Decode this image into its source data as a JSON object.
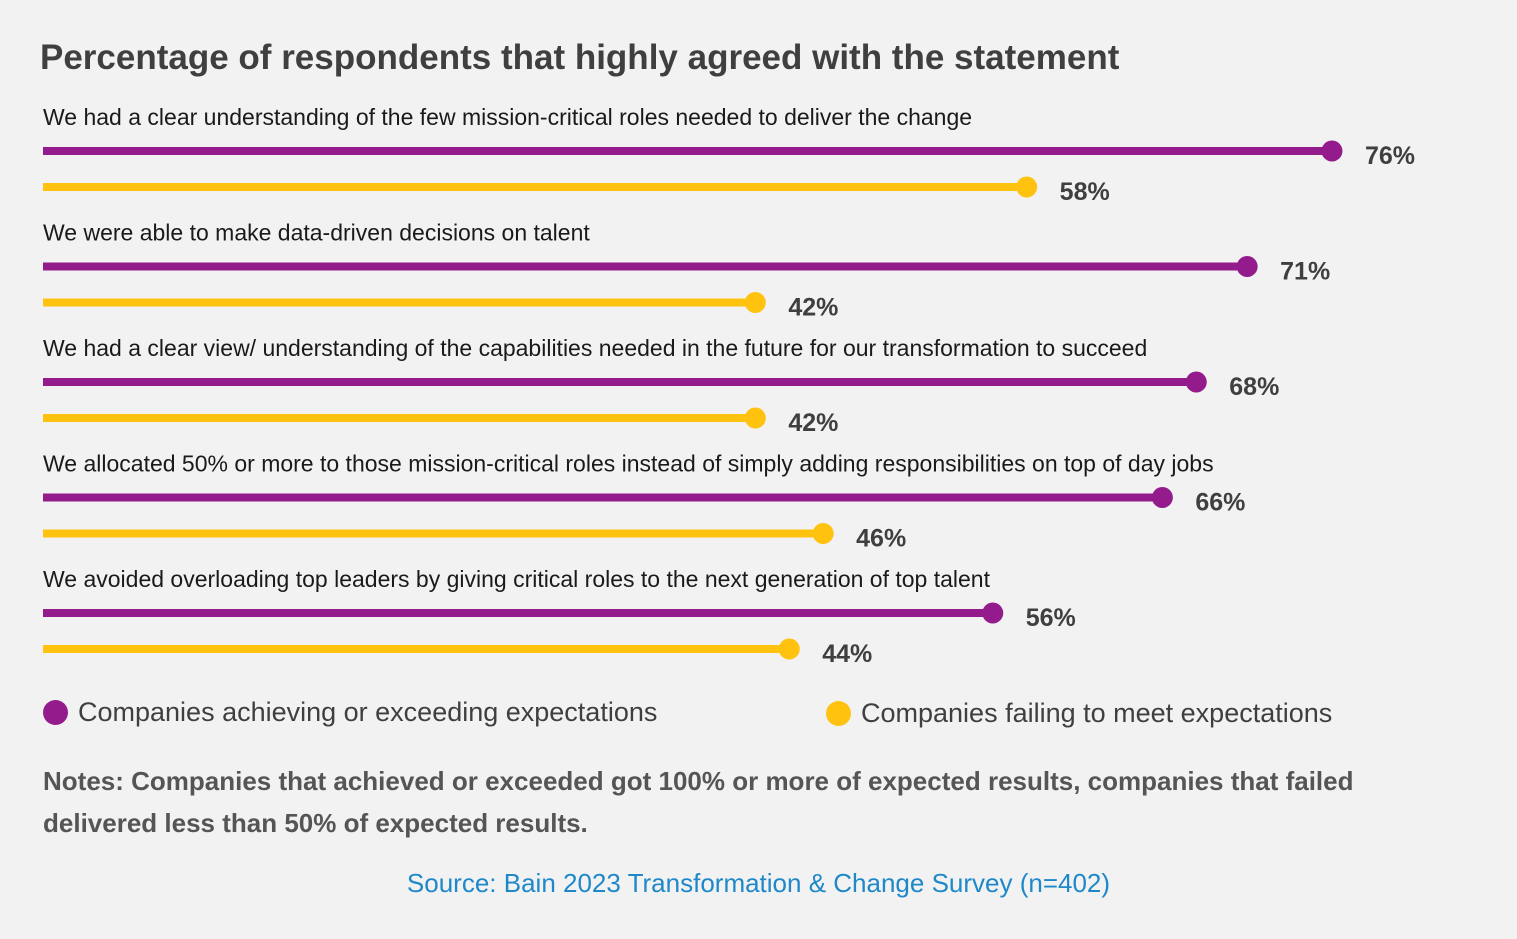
{
  "chart_data": {
    "type": "bar",
    "orientation": "horizontal",
    "style": "lollipop",
    "title": "Percentage of respondents that highly agreed with the statement",
    "categories": [
      "We had a clear understanding of the few mission-critical roles needed to deliver the change",
      "We were able to make data-driven decisions on talent",
      "We had a clear view/ understanding of the capabilities needed in the future for our transformation to succeed",
      "We allocated 50% or more to those mission-critical roles instead of simply adding responsibilities on top of day jobs",
      "We avoided overloading top leaders by giving critical roles to the next generation of top talent"
    ],
    "series": [
      {
        "name": "Companies achieving or exceeding expectations",
        "color": "#931b8c",
        "values": [
          76,
          71,
          68,
          66,
          56
        ],
        "labels": [
          "76%",
          "71%",
          "68%",
          "66%",
          "56%"
        ]
      },
      {
        "name": "Companies failing to meet expectations",
        "color": "#ffc20e",
        "values": [
          58,
          42,
          42,
          46,
          44
        ],
        "labels": [
          "58%",
          "42%",
          "42%",
          "46%",
          "44%"
        ]
      }
    ],
    "xlim": [
      0,
      100
    ],
    "grid": false,
    "legend_position": "bottom-left"
  },
  "notes": "Notes: Companies that achieved or exceeded got 100% or more of expected results, companies that failed delivered less than 50% of expected results.",
  "source": "Source: Bain 2023 Transformation & Change Survey (n=402)"
}
